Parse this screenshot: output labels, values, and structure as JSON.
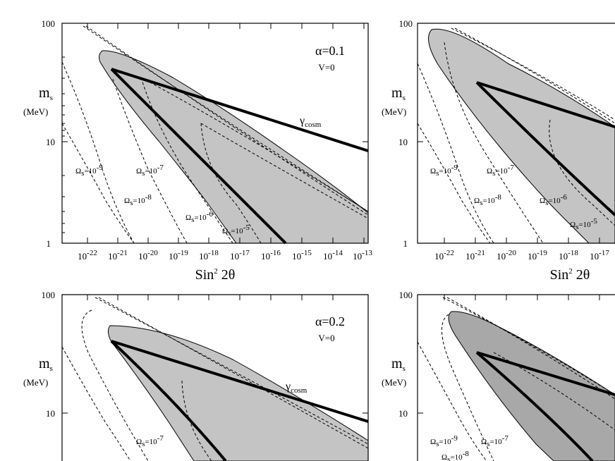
{
  "chart_data": [
    {
      "type": "line",
      "panel": "top-left",
      "x_scale": "log",
      "y_scale": "log",
      "xlim": [
        1e-23,
        1e-13
      ],
      "ylim": [
        1,
        100
      ],
      "x_ticks": [
        1e-22,
        1e-21,
        1e-20,
        1e-19,
        1e-18,
        1e-17,
        1e-16,
        1e-15,
        1e-14,
        1e-13
      ],
      "x_tick_labels": [
        "10^-22",
        "10^-21",
        "10^-20",
        "10^-19",
        "10^-18",
        "10^-17",
        "10^-16",
        "10^-15",
        "10^-14",
        "10^-13"
      ],
      "y_tick_labels": [
        "100",
        "10",
        "1"
      ],
      "ylabel": "m_s",
      "ylabel_units": "(MeV)",
      "xlabel": "Sin² 2θ",
      "param_label": "α=0.1",
      "param_label2": "V=0",
      "series": [
        {
          "name": "γ_cosm",
          "style": "thick-solid",
          "points": [
            [
              2e-21,
              40
            ],
            [
              3e-13,
              8.5
            ]
          ]
        },
        {
          "name": "contour-lower-branch",
          "style": "thick-solid",
          "points": [
            [
              2e-21,
              40
            ],
            [
              2e-16,
              1
            ]
          ]
        }
      ],
      "regions": [
        {
          "name": "shaded-allowed",
          "fill": "#c4c4c4",
          "points": [
            [
              4e-22,
              60
            ],
            [
              3e-13,
              2.0
            ],
            [
              3e-13,
              1
            ],
            [
              2e-16,
              1
            ],
            [
              2e-21,
              40
            ]
          ]
        }
      ],
      "contours": [
        {
          "label": "Ω_s=10^-9",
          "label_text": "10",
          "label_exp": "-9",
          "level": "1e-9"
        },
        {
          "label": "Ω_s=10^-8",
          "label_text": "10",
          "label_exp": "-8",
          "level": "1e-8"
        },
        {
          "label": "Ω_s=10^-7",
          "label_text": "10",
          "label_exp": "-7",
          "level": "1e-7"
        },
        {
          "label": "Ω_s=10^-6",
          "label_text": "10",
          "label_exp": "-6",
          "level": "1e-6"
        },
        {
          "label": "Ω_s=10^-5",
          "label_text": "10",
          "label_exp": "-5",
          "level": "1e-5"
        }
      ]
    },
    {
      "type": "line",
      "panel": "top-right",
      "x_scale": "log",
      "y_scale": "log",
      "xlim": [
        1e-23,
        1e-16
      ],
      "ylim": [
        1,
        100
      ],
      "x_ticks": [
        1e-22,
        1e-21,
        1e-20,
        1e-19,
        1e-18,
        1e-17
      ],
      "x_tick_labels": [
        "10^-22",
        "10^-21",
        "10^-20",
        "10^-19",
        "10^-18",
        "10^-17"
      ],
      "y_tick_labels": [
        "100",
        "10",
        "1"
      ],
      "ylabel": "m_s",
      "ylabel_units": "(MeV)",
      "xlabel": "Sin² 2θ",
      "contours": [
        {
          "label_text": "10",
          "label_exp": "-9"
        },
        {
          "label_text": "10",
          "label_exp": "-8"
        },
        {
          "label_text": "10",
          "label_exp": "-7"
        },
        {
          "label_text": "10",
          "label_exp": "-6"
        },
        {
          "label_text": "10",
          "label_exp": "-5"
        }
      ]
    },
    {
      "type": "line",
      "panel": "bottom-left",
      "x_scale": "log",
      "y_scale": "log",
      "ylim": [
        1,
        100
      ],
      "y_tick_labels": [
        "100",
        "10"
      ],
      "ylabel": "m_s",
      "ylabel_units": "(MeV)",
      "param_label": "α=0.2",
      "param_label2": "V=0",
      "series": [
        {
          "name": "γ_cosm",
          "style": "thick-solid"
        }
      ],
      "contours": [
        {
          "label_text": "10",
          "label_exp": "-7"
        }
      ]
    },
    {
      "type": "line",
      "panel": "bottom-right",
      "x_scale": "log",
      "y_scale": "log",
      "ylim": [
        1,
        100
      ],
      "y_tick_labels": [
        "100",
        "10"
      ],
      "ylabel": "m_s",
      "ylabel_units": "(MeV)",
      "contours": [
        {
          "label_text": "10",
          "label_exp": "-9"
        },
        {
          "label_text": "10",
          "label_exp": "-8"
        },
        {
          "label_text": "10",
          "label_exp": "-7"
        }
      ]
    }
  ],
  "labels": {
    "omega_sym": "Ω",
    "omega_sub": "s",
    "gamma_sym": "γ",
    "gamma_sub": "cosm",
    "m_sym": "m",
    "m_sub": "s",
    "mev": "(MeV)",
    "tl_alpha": "α=0.1",
    "tl_v": "V=0",
    "bl_alpha": "α=0.2",
    "bl_v": "V=0",
    "y100": "100",
    "y10": "10",
    "y1": "1",
    "xlabel_main": "Sin",
    "xlabel_sup": "2",
    "xlabel_tail": " 2θ"
  }
}
